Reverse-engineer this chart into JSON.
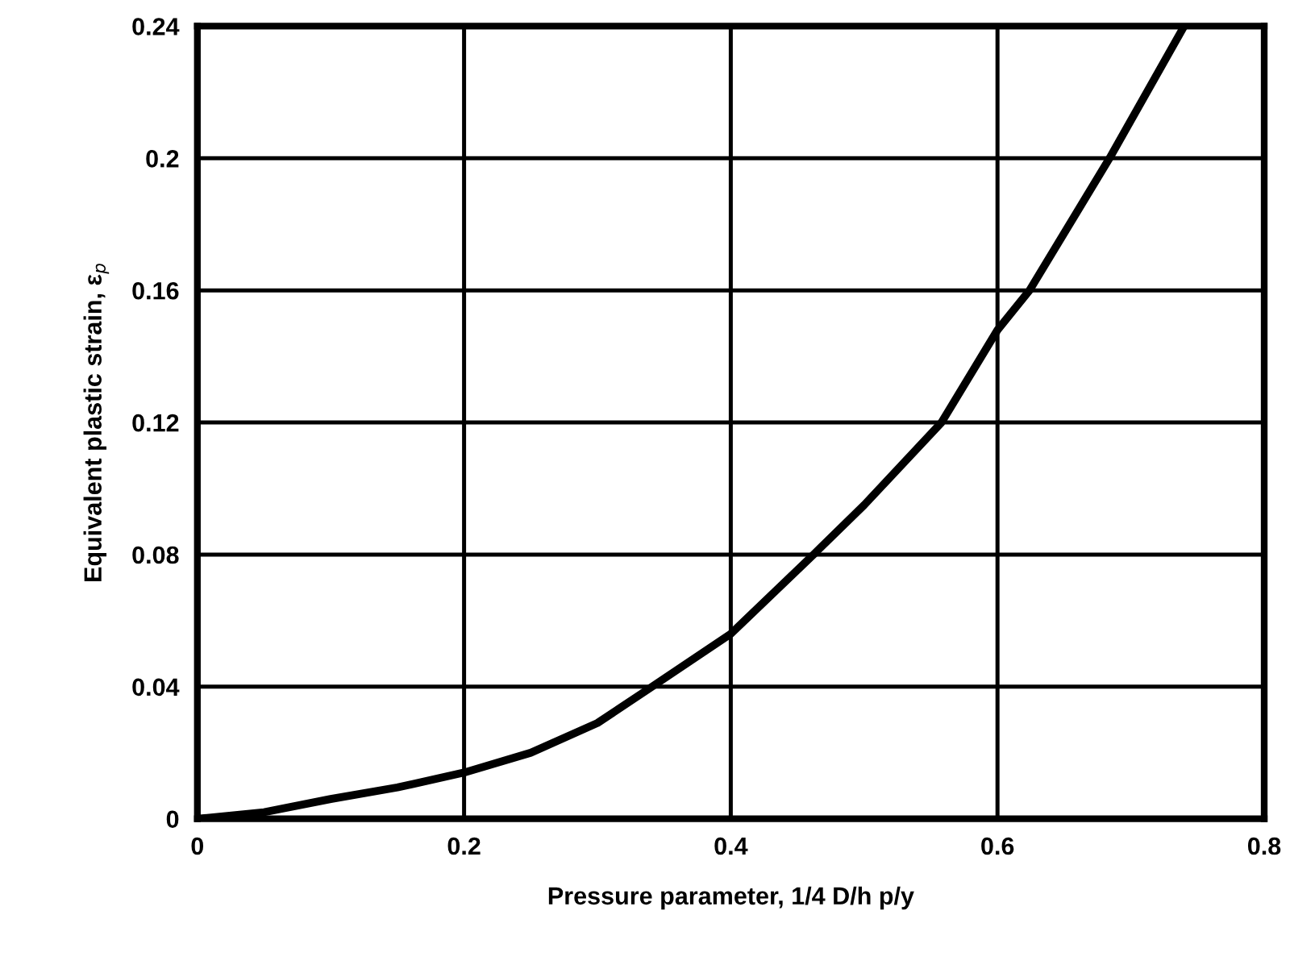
{
  "chart_data": {
    "type": "line",
    "xlabel": "Pressure parameter, 1/4 D/h p/y",
    "ylabel": "Equivalent plastic strain, ε$_{p}$",
    "series": [
      {
        "color": "#000000",
        "x": [
          0,
          0.05,
          0.1,
          0.15,
          0.2,
          0.25,
          0.3,
          0.341,
          0.4,
          0.462,
          0.5,
          0.558,
          0.6,
          0.624,
          0.684,
          0.74
        ],
        "values": [
          0,
          0.002,
          0.006,
          0.0095,
          0.014,
          0.02,
          0.029,
          0.04,
          0.056,
          0.08,
          0.095,
          0.12,
          0.148,
          0.16,
          0.2,
          0.24
        ]
      }
    ],
    "xlim": [
      0,
      0.8
    ],
    "xticks": [
      0,
      0.2,
      0.4,
      0.6,
      0.8
    ],
    "ylim": [
      0,
      0.24
    ],
    "yticks": [
      0,
      0.04,
      0.08,
      0.12,
      0.16,
      0.2,
      0.24
    ],
    "grid": true
  }
}
